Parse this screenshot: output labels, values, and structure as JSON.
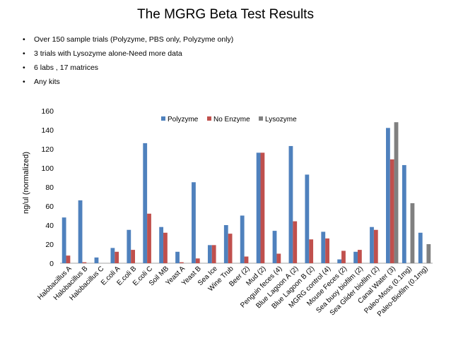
{
  "slide": {
    "title": "The MGRG Beta Test Results",
    "bullets": [
      "Over 150  sample trials (Polyzyme, PBS only, Polyzyme only)",
      "3 trials with Lysozyme alone-Need more data",
      "6 labs , 17 matrices",
      "Any kits"
    ],
    "bullet_glyph": "•"
  },
  "chart_data": {
    "type": "bar",
    "title": "",
    "xlabel": "",
    "ylabel": "ng/ul (normalized)",
    "ylim": [
      0,
      160
    ],
    "yticks": [
      0,
      20,
      40,
      60,
      80,
      100,
      120,
      140,
      160
    ],
    "grid": false,
    "legend_position": "top-center",
    "categories": [
      "Halobacillus A",
      "Halobacillus B",
      "Halobacillus C",
      "E.coli A",
      "E.coli B",
      "E.coli C",
      "Soil MB",
      "Yeast A",
      "Yeast B",
      "Sea Ice",
      "Wine Trub",
      "Beer (2)",
      "Mud (2)",
      "Penguin feces (4)",
      "Blue Lagoon A (2)",
      "Blue Lagoon B (2)",
      "MGRG control (4)",
      "Mouse Feces (2)",
      "Sea buoy biofilm (2)",
      "Sea Glider biofilm (2)",
      "Canal Water (3)",
      "Paleo-Moss (0.1mg)",
      "Paleo-Biofilm (0.1mg)"
    ],
    "series": [
      {
        "name": "Polyzyme",
        "color": "#4F81BD",
        "values": [
          48,
          66,
          6,
          16,
          35,
          126,
          38,
          12,
          85,
          19,
          40,
          50,
          116,
          34,
          123,
          93,
          33,
          4,
          12,
          38,
          142,
          103,
          32
        ]
      },
      {
        "name": "No Enzyme",
        "color": "#C0504D",
        "values": [
          8,
          1,
          0,
          12,
          14,
          52,
          32,
          1,
          5,
          19,
          31,
          7,
          116,
          10,
          44,
          25,
          26,
          13,
          14,
          35,
          109,
          0,
          0
        ]
      },
      {
        "name": "Lysozyme",
        "color": "#808080",
        "values": [
          0,
          0,
          0,
          0,
          0,
          0,
          0,
          0,
          0,
          0,
          0,
          0,
          0,
          0,
          0,
          0,
          0,
          0,
          0,
          0,
          148,
          63,
          20
        ]
      }
    ]
  }
}
